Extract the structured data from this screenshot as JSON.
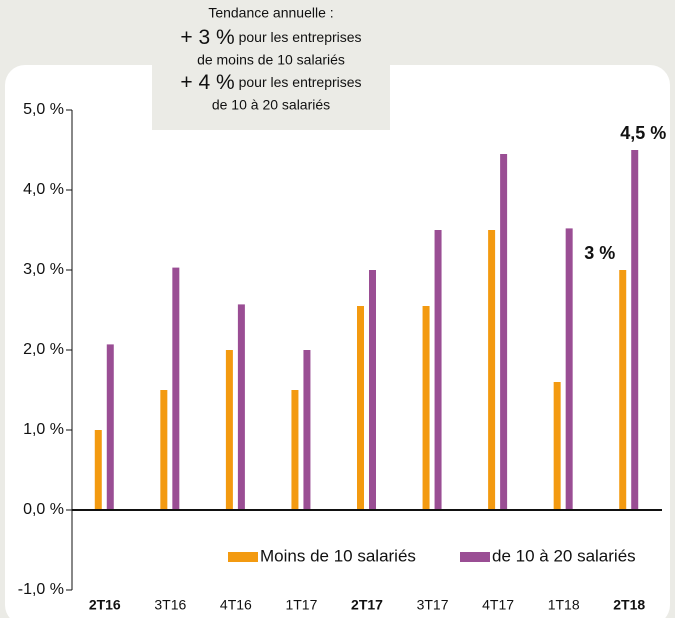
{
  "chart_data": {
    "type": "bar",
    "annotation": {
      "title": "Tendance annuelle :",
      "items": [
        {
          "figure": "+ 3 %",
          "text": [
            "pour les entreprises",
            "de moins de 10 salariés"
          ]
        },
        {
          "figure": "+ 4 %",
          "text": [
            "pour les entreprises",
            "de 10 à 20 salariés"
          ]
        }
      ]
    },
    "categories": [
      "2T16",
      "3T16",
      "4T16",
      "1T17",
      "2T17",
      "3T17",
      "4T17",
      "1T18",
      "2T18"
    ],
    "bold_category_indices": [
      0,
      4,
      8
    ],
    "series": [
      {
        "name": "Moins de 10 salariés",
        "color": "#f39a10",
        "values": [
          1.0,
          1.5,
          2.0,
          1.5,
          2.55,
          2.55,
          3.5,
          1.6,
          3.0
        ],
        "value_labels": [
          null,
          null,
          null,
          null,
          null,
          null,
          null,
          null,
          "3 %"
        ]
      },
      {
        "name": "de 10 à 20 salariés",
        "color": "#9a4e94",
        "values": [
          2.07,
          3.03,
          2.57,
          2.0,
          3.0,
          3.5,
          4.45,
          3.52,
          4.5
        ],
        "value_labels": [
          null,
          null,
          null,
          null,
          null,
          null,
          null,
          null,
          "4,5 %"
        ]
      }
    ],
    "ylim": [
      -1,
      5
    ],
    "yticks": [
      {
        "value": -1,
        "label": "-1,0 %"
      },
      {
        "value": 0,
        "label": "0,0 %"
      },
      {
        "value": 1,
        "label": "1,0 %"
      },
      {
        "value": 2,
        "label": "2,0 %"
      },
      {
        "value": 3,
        "label": "3,0 %"
      },
      {
        "value": 4,
        "label": "4,0 %"
      },
      {
        "value": 5,
        "label": "5,0 %"
      }
    ],
    "legend": "bottom",
    "grid": false
  }
}
